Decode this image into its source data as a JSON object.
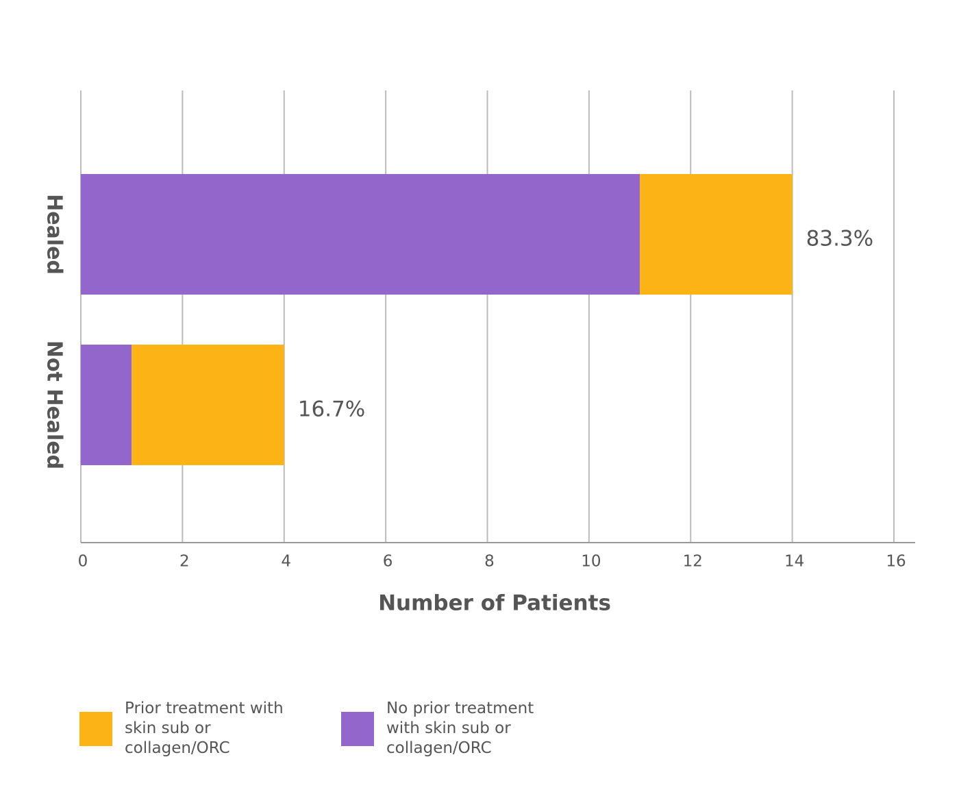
{
  "chart_data": {
    "type": "stacked_barh",
    "categories": [
      "Healed",
      "Not Healed"
    ],
    "series": [
      {
        "name": "No prior treatment with skin sub or collagen/ORC",
        "color": "#9366cb",
        "values": [
          11,
          1
        ]
      },
      {
        "name": "Prior treatment with skin sub or collagen/ORC",
        "color": "#fcb316",
        "values": [
          3,
          3
        ]
      }
    ],
    "annotations": [
      "83.3%",
      "16.7%"
    ],
    "xlabel": "Number of Patients",
    "xlim": [
      0,
      16
    ],
    "xticks": [
      0,
      2,
      4,
      6,
      8,
      10,
      12,
      14,
      16
    ],
    "grid": true
  }
}
